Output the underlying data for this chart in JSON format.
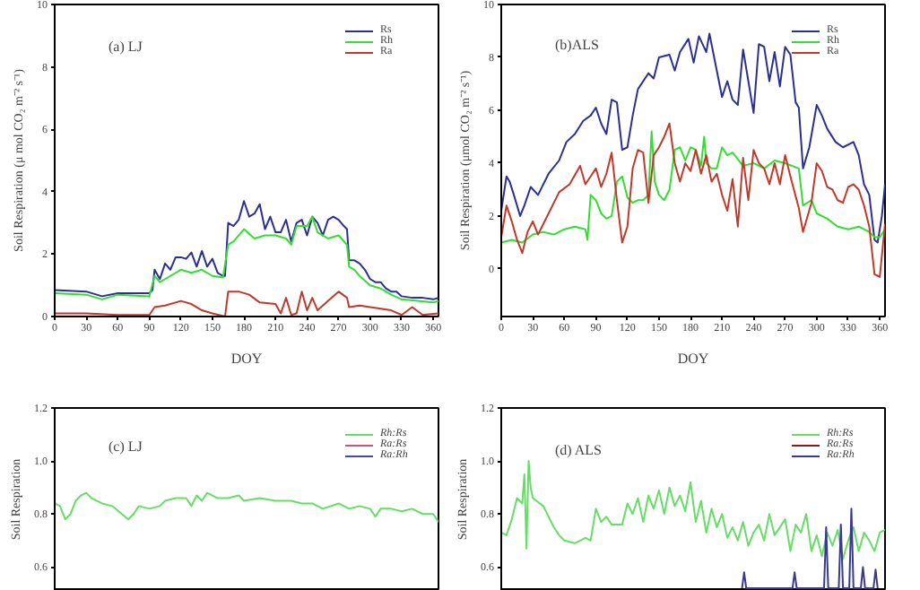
{
  "chart_data": [
    {
      "type": "line",
      "xlabel": "DOY",
      "ylabel": "Soil Respiration (μ mol CO₂ m⁻² s⁻¹)",
      "annotations": [
        "(a) LJ"
      ],
      "xlim": [
        0,
        365
      ],
      "ylim": [
        0,
        10
      ],
      "xticks": [
        0,
        30,
        60,
        90,
        120,
        150,
        180,
        210,
        240,
        270,
        300,
        330,
        360
      ],
      "yticks": [
        0,
        2,
        4,
        6,
        8,
        10
      ],
      "legend": "top right",
      "grid": false,
      "series": [
        {
          "name": "Rs",
          "color": "#2b2f8f",
          "x": [
            0,
            30,
            45,
            60,
            90,
            93,
            95,
            100,
            105,
            110,
            115,
            120,
            125,
            130,
            135,
            140,
            145,
            150,
            155,
            160,
            162,
            165,
            170,
            175,
            180,
            185,
            190,
            195,
            200,
            205,
            210,
            215,
            220,
            225,
            230,
            235,
            240,
            245,
            250,
            255,
            260,
            265,
            270,
            275,
            278,
            280,
            285,
            290,
            295,
            300,
            305,
            310,
            315,
            320,
            325,
            330,
            340,
            350,
            360,
            365
          ],
          "values": [
            0.85,
            0.8,
            0.65,
            0.75,
            0.75,
            0.85,
            1.5,
            1.2,
            1.7,
            1.5,
            1.9,
            1.9,
            1.85,
            2.05,
            1.6,
            2.1,
            1.6,
            1.85,
            1.4,
            1.3,
            1.3,
            3.0,
            2.9,
            3.1,
            3.7,
            3.2,
            3.3,
            3.6,
            2.8,
            3.2,
            2.7,
            2.7,
            3.1,
            2.4,
            3.0,
            3.1,
            2.6,
            3.2,
            3.0,
            2.6,
            3.1,
            3.2,
            3.1,
            2.9,
            2.8,
            1.8,
            1.8,
            1.7,
            1.5,
            1.2,
            1.1,
            1.1,
            0.9,
            0.8,
            0.8,
            0.65,
            0.6,
            0.6,
            0.55,
            0.6
          ]
        },
        {
          "name": "Rh",
          "color": "#33dd33",
          "x": [
            0,
            30,
            45,
            60,
            90,
            95,
            100,
            110,
            120,
            130,
            140,
            150,
            160,
            165,
            170,
            180,
            190,
            200,
            210,
            220,
            225,
            230,
            240,
            245,
            250,
            260,
            270,
            278,
            280,
            285,
            290,
            300,
            310,
            320,
            330,
            345,
            360,
            365
          ],
          "values": [
            0.75,
            0.7,
            0.55,
            0.7,
            0.65,
            1.3,
            1.1,
            1.3,
            1.5,
            1.4,
            1.5,
            1.3,
            1.25,
            2.3,
            2.4,
            2.8,
            2.5,
            2.6,
            2.6,
            2.5,
            2.3,
            2.9,
            2.9,
            3.2,
            2.7,
            2.5,
            2.6,
            2.3,
            1.6,
            1.5,
            1.3,
            1.0,
            0.9,
            0.7,
            0.55,
            0.5,
            0.45,
            0.5
          ]
        },
        {
          "name": "Ra",
          "color": "#c0392b",
          "x": [
            0,
            30,
            60,
            90,
            95,
            105,
            120,
            130,
            140,
            150,
            162,
            165,
            175,
            185,
            195,
            210,
            215,
            220,
            225,
            230,
            235,
            240,
            245,
            250,
            260,
            270,
            278,
            280,
            290,
            300,
            320,
            330,
            340,
            350,
            365
          ],
          "values": [
            0.1,
            0.1,
            0.05,
            0.05,
            0.3,
            0.35,
            0.5,
            0.4,
            0.2,
            0.1,
            0.0,
            0.8,
            0.8,
            0.7,
            0.45,
            0.4,
            0.1,
            0.6,
            0.05,
            0.1,
            0.8,
            0.2,
            0.6,
            0.2,
            0.5,
            0.8,
            0.6,
            0.3,
            0.35,
            0.3,
            0.2,
            0.05,
            0.3,
            0.05,
            0.1
          ]
        }
      ]
    },
    {
      "type": "line",
      "xlabel": "DOY",
      "ylabel": "Soil Respiration (μmol CO₂ m⁻² s⁻¹)",
      "annotations": [
        "(b)ALS"
      ],
      "xlim": [
        0,
        365
      ],
      "ylim": [
        -1.8,
        10
      ],
      "xticks": [
        0,
        30,
        60,
        90,
        120,
        150,
        180,
        210,
        240,
        270,
        300,
        330,
        360
      ],
      "yticks": [
        0,
        2,
        4,
        6,
        8,
        10
      ],
      "legend": "top right",
      "grid": false,
      "series": [
        {
          "name": "Rs",
          "color": "#2b2f8f",
          "x": [
            0,
            5,
            8,
            12,
            18,
            22,
            28,
            35,
            45,
            55,
            62,
            70,
            78,
            85,
            90,
            95,
            100,
            105,
            110,
            115,
            120,
            125,
            130,
            140,
            145,
            150,
            160,
            165,
            170,
            178,
            183,
            188,
            195,
            198,
            205,
            210,
            215,
            220,
            225,
            230,
            235,
            240,
            245,
            250,
            255,
            260,
            265,
            270,
            275,
            280,
            283,
            287,
            293,
            300,
            305,
            310,
            318,
            325,
            335,
            340,
            345,
            350,
            355,
            358,
            362,
            365
          ],
          "values": [
            2.2,
            3.5,
            3.3,
            2.8,
            2.0,
            2.4,
            3.1,
            2.8,
            3.6,
            4.1,
            4.8,
            5.1,
            5.6,
            5.8,
            6.1,
            5.5,
            5.1,
            6.4,
            6.3,
            4.5,
            4.6,
            5.8,
            6.8,
            7.4,
            7.2,
            8.0,
            8.1,
            7.5,
            8.2,
            8.7,
            7.8,
            8.8,
            8.2,
            8.9,
            7.5,
            6.5,
            7.1,
            6.4,
            6.2,
            8.3,
            7.1,
            5.9,
            8.5,
            8.4,
            7.1,
            8.2,
            6.9,
            8.4,
            8.1,
            6.3,
            6.1,
            3.8,
            4.6,
            6.2,
            5.8,
            5.3,
            4.8,
            4.6,
            4.8,
            4.3,
            3.2,
            2.8,
            1.1,
            1.0,
            2.0,
            3.2
          ]
        },
        {
          "name": "Rh",
          "color": "#33dd33",
          "x": [
            0,
            10,
            20,
            30,
            40,
            50,
            60,
            70,
            80,
            82,
            85,
            90,
            95,
            100,
            105,
            110,
            115,
            120,
            125,
            130,
            135,
            140,
            143,
            146,
            150,
            155,
            160,
            165,
            170,
            175,
            180,
            185,
            190,
            193,
            195,
            200,
            205,
            210,
            215,
            220,
            230,
            240,
            250,
            260,
            270,
            283,
            287,
            295,
            300,
            310,
            320,
            330,
            340,
            350,
            355,
            360,
            365
          ],
          "values": [
            1.0,
            1.1,
            1.0,
            1.3,
            1.4,
            1.3,
            1.5,
            1.6,
            1.5,
            1.1,
            2.8,
            2.6,
            2.1,
            1.9,
            2.0,
            3.3,
            3.5,
            2.7,
            2.5,
            2.6,
            2.6,
            2.8,
            5.2,
            3.3,
            2.8,
            2.6,
            3.0,
            4.5,
            4.6,
            4.1,
            4.6,
            4.5,
            3.9,
            5.0,
            4.0,
            3.8,
            3.8,
            4.6,
            4.3,
            4.4,
            3.9,
            4.0,
            3.8,
            4.1,
            4.0,
            3.8,
            2.4,
            2.6,
            2.1,
            1.9,
            1.6,
            1.5,
            1.6,
            1.4,
            1.2,
            1.2,
            1.5
          ]
        },
        {
          "name": "Ra",
          "color": "#c0392b",
          "x": [
            0,
            5,
            10,
            15,
            20,
            25,
            30,
            35,
            45,
            55,
            65,
            75,
            80,
            85,
            90,
            95,
            100,
            105,
            110,
            115,
            120,
            125,
            130,
            135,
            140,
            145,
            150,
            155,
            160,
            165,
            170,
            175,
            180,
            185,
            190,
            195,
            200,
            205,
            210,
            215,
            220,
            225,
            230,
            235,
            240,
            245,
            250,
            255,
            260,
            265,
            270,
            275,
            283,
            287,
            295,
            300,
            305,
            310,
            315,
            320,
            325,
            330,
            335,
            340,
            345,
            350,
            355,
            360,
            365
          ],
          "values": [
            1.2,
            2.4,
            1.8,
            1.1,
            0.6,
            1.4,
            1.8,
            1.3,
            2.1,
            2.9,
            3.2,
            3.9,
            3.2,
            3.5,
            3.8,
            3.1,
            3.6,
            4.4,
            2.6,
            1.0,
            1.6,
            3.8,
            4.5,
            4.4,
            2.5,
            4.3,
            4.6,
            5.0,
            5.5,
            4.0,
            3.3,
            4.0,
            3.7,
            4.5,
            3.6,
            4.3,
            3.3,
            3.6,
            2.8,
            2.2,
            3.4,
            1.6,
            4.2,
            2.6,
            4.5,
            4.0,
            3.8,
            3.2,
            4.0,
            3.2,
            4.3,
            3.5,
            2.3,
            1.4,
            2.5,
            4.0,
            3.7,
            3.1,
            3.0,
            2.6,
            2.5,
            3.1,
            3.2,
            3.0,
            2.4,
            1.6,
            -0.2,
            -0.3,
            1.7
          ]
        }
      ]
    },
    {
      "type": "line",
      "ylabel": "Soil Respiration",
      "annotations": [
        "(c) LJ"
      ],
      "xlim": [
        0,
        365
      ],
      "ylim": [
        0.51,
        1.2
      ],
      "yticks": [
        {
          "value": 0.6,
          "label": "0.6"
        },
        {
          "value": 0.8,
          "label": "0.8"
        },
        {
          "value": 1,
          "label": "1.0"
        },
        {
          "value": 1.2,
          "label": "1.2"
        }
      ],
      "tick_labels": "y",
      "legend": "top right",
      "grid": false,
      "series": [
        {
          "name": "Rh:Rs",
          "color": "#66dd66",
          "x": [
            0,
            5,
            10,
            15,
            20,
            25,
            30,
            35,
            45,
            55,
            70,
            75,
            80,
            90,
            100,
            105,
            115,
            125,
            130,
            135,
            140,
            145,
            155,
            165,
            175,
            180,
            195,
            210,
            225,
            235,
            245,
            255,
            270,
            280,
            290,
            300,
            305,
            310,
            320,
            330,
            340,
            350,
            360,
            365
          ],
          "values": [
            0.84,
            0.83,
            0.78,
            0.8,
            0.85,
            0.87,
            0.88,
            0.86,
            0.84,
            0.83,
            0.78,
            0.8,
            0.83,
            0.82,
            0.83,
            0.85,
            0.86,
            0.86,
            0.83,
            0.87,
            0.85,
            0.88,
            0.86,
            0.86,
            0.87,
            0.85,
            0.86,
            0.85,
            0.85,
            0.84,
            0.84,
            0.82,
            0.84,
            0.82,
            0.83,
            0.82,
            0.79,
            0.82,
            0.82,
            0.81,
            0.82,
            0.8,
            0.8,
            0.77
          ]
        },
        {
          "name": "Ra:Rs",
          "color": "#cc5577"
        },
        {
          "name": "Ra:Rh",
          "color": "#4a4a9a"
        }
      ]
    },
    {
      "type": "line",
      "ylabel": "Soil Respiration",
      "annotations": [
        "(d) ALS"
      ],
      "xlim": [
        0,
        365
      ],
      "ylim": [
        0.51,
        1.2
      ],
      "yticks": [
        {
          "value": 0.6,
          "label": "0.6"
        },
        {
          "value": 0.8,
          "label": "0.8"
        },
        {
          "value": 1,
          "label": "1.0"
        },
        {
          "value": 1.2,
          "label": "1.2"
        }
      ],
      "tick_labels": "y",
      "legend": "top right",
      "grid": false,
      "series": [
        {
          "name": "Rh:Rs",
          "color": "#66dd66",
          "x": [
            0,
            5,
            10,
            15,
            20,
            22,
            24,
            26,
            28,
            30,
            40,
            50,
            55,
            60,
            70,
            80,
            85,
            90,
            95,
            100,
            105,
            115,
            120,
            125,
            130,
            135,
            140,
            145,
            150,
            155,
            160,
            165,
            170,
            175,
            180,
            185,
            190,
            195,
            200,
            205,
            210,
            215,
            220,
            225,
            230,
            235,
            240,
            245,
            250,
            255,
            260,
            270,
            275,
            280,
            285,
            290,
            295,
            300,
            305,
            310,
            315,
            320,
            325,
            330,
            335,
            340,
            345,
            350,
            355,
            360,
            365
          ],
          "values": [
            0.73,
            0.72,
            0.78,
            0.86,
            0.84,
            0.95,
            0.67,
            1.0,
            0.9,
            0.86,
            0.83,
            0.75,
            0.72,
            0.7,
            0.69,
            0.71,
            0.7,
            0.82,
            0.77,
            0.79,
            0.76,
            0.76,
            0.84,
            0.8,
            0.86,
            0.77,
            0.87,
            0.82,
            0.89,
            0.8,
            0.9,
            0.83,
            0.87,
            0.81,
            0.92,
            0.77,
            0.85,
            0.73,
            0.82,
            0.75,
            0.8,
            0.71,
            0.75,
            0.7,
            0.77,
            0.68,
            0.73,
            0.76,
            0.7,
            0.8,
            0.72,
            0.78,
            0.66,
            0.76,
            0.73,
            0.8,
            0.66,
            0.72,
            0.64,
            0.73,
            0.68,
            0.74,
            0.63,
            0.7,
            0.75,
            0.66,
            0.73,
            0.7,
            0.66,
            0.73,
            0.74
          ]
        },
        {
          "name": "Ra:Rs",
          "color": "#8b1a1a"
        },
        {
          "name": "Ra:Rh",
          "color": "#3a3a8a",
          "x": [
            229,
            231,
            233,
            277,
            279,
            281,
            307,
            309,
            311,
            321,
            323,
            325,
            331,
            333,
            335,
            342,
            344,
            346,
            354,
            356,
            358
          ],
          "values": [
            0.52,
            0.58,
            0.52,
            0.52,
            0.58,
            0.52,
            0.52,
            0.75,
            0.52,
            0.52,
            0.76,
            0.52,
            0.52,
            0.82,
            0.52,
            0.52,
            0.6,
            0.52,
            0.52,
            0.59,
            0.52
          ]
        }
      ]
    }
  ]
}
